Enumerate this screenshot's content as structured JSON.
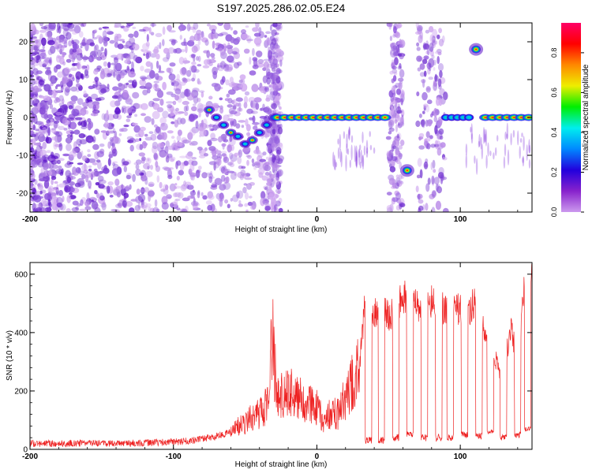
{
  "title": "S197.2025.286.02.05.E24",
  "chart_data": [
    {
      "type": "heatmap",
      "title": "S197.2025.286.02.05.E24",
      "xlabel": "Height of straight line (km)",
      "ylabel": "Frequency (Hz)",
      "xlim": [
        -200,
        150
      ],
      "ylim": [
        -25,
        25
      ],
      "xticks": [
        -200,
        -100,
        0,
        100
      ],
      "yticks": [
        -20,
        -10,
        0,
        10,
        20
      ],
      "colorbar": {
        "label": "Normalized spectral amplitude",
        "range": [
          0.0,
          0.95
        ],
        "ticks": [
          0.0,
          0.2,
          0.4,
          0.6,
          0.8
        ],
        "colors": [
          "#cc99ee",
          "#8822cc",
          "#2200dd",
          "#0088ff",
          "#00eeee",
          "#00ee00",
          "#eeee00",
          "#ff8800",
          "#ff0000",
          "#ff0066"
        ]
      },
      "features": [
        {
          "name": "noise-region",
          "x_range": [
            -200,
            -30
          ],
          "freq_range": [
            -25,
            25
          ],
          "amplitude": 0.1
        },
        {
          "name": "descending-track",
          "points": [
            [
              -75,
              2
            ],
            [
              -70,
              0
            ],
            [
              -65,
              -2
            ],
            [
              -60,
              -4
            ],
            [
              -55,
              -5
            ],
            [
              -50,
              -7
            ],
            [
              -45,
              -6
            ],
            [
              -40,
              -4
            ],
            [
              -35,
              -2
            ],
            [
              -30,
              0
            ]
          ],
          "amplitude": 0.3
        },
        {
          "name": "main-tone",
          "x_range": [
            -30,
            50
          ],
          "freq": 0,
          "amplitude": 0.85
        },
        {
          "name": "tone-segment-1",
          "x_range": [
            88,
            108
          ],
          "freq": 0,
          "amplitude": 0.35
        },
        {
          "name": "tone-segment-2",
          "x_range": [
            115,
            150
          ],
          "freq": 0,
          "amplitude": 0.85
        },
        {
          "name": "blob-low",
          "x": 63,
          "freq": -14,
          "amplitude": 0.9
        },
        {
          "name": "blob-high",
          "x": 111,
          "freq": 18,
          "amplitude": 0.6
        },
        {
          "name": "vertical-stripe-1",
          "x_range": [
            50,
            60
          ],
          "amplitude": 0.15
        },
        {
          "name": "vertical-stripe-2",
          "x_range": [
            70,
            90
          ],
          "amplitude": 0.12
        }
      ]
    },
    {
      "type": "line",
      "xlabel": "Height of straight line (km)",
      "ylabel": "SNR (10 * v/v)",
      "xlim": [
        -200,
        150
      ],
      "ylim": [
        0,
        640
      ],
      "xticks": [
        -200,
        -100,
        0,
        100
      ],
      "yticks": [
        0,
        200,
        400,
        600
      ],
      "color": "#ee2222",
      "series": [
        {
          "name": "SNR",
          "x": [
            -200,
            -180,
            -160,
            -140,
            -120,
            -100,
            -90,
            -80,
            -70,
            -60,
            -55,
            -50,
            -45,
            -40,
            -35,
            -31,
            -28,
            -25,
            -20,
            -15,
            -10,
            -5,
            0,
            5,
            10,
            15,
            20,
            25,
            30,
            33,
            36,
            40,
            45,
            50,
            55,
            60,
            65,
            70,
            75,
            80,
            85,
            90,
            95,
            100,
            105,
            110,
            115,
            120,
            125,
            130,
            135,
            140,
            145,
            148,
            150
          ],
          "values": [
            20,
            20,
            22,
            20,
            22,
            25,
            28,
            35,
            45,
            60,
            80,
            90,
            110,
            120,
            150,
            380,
            200,
            180,
            200,
            180,
            170,
            160,
            150,
            90,
            130,
            120,
            180,
            230,
            300,
            470,
            480,
            460,
            500,
            450,
            480,
            520,
            510,
            500,
            480,
            510,
            500,
            470,
            490,
            480,
            470,
            500,
            420,
            400,
            300,
            250,
            420,
            300,
            560,
            590,
            620
          ]
        }
      ],
      "gaps": [
        {
          "x": 36,
          "low": 30
        },
        {
          "x": 45,
          "low": 30
        },
        {
          "x": 55,
          "low": 40
        },
        {
          "x": 65,
          "low": 50
        },
        {
          "x": 75,
          "low": 40
        },
        {
          "x": 85,
          "low": 40
        },
        {
          "x": 93,
          "low": 40
        },
        {
          "x": 103,
          "low": 50
        },
        {
          "x": 113,
          "low": 45
        },
        {
          "x": 121,
          "low": 60
        },
        {
          "x": 130,
          "low": 40
        },
        {
          "x": 140,
          "low": 50
        },
        {
          "x": 147,
          "low": 70
        }
      ]
    }
  ]
}
